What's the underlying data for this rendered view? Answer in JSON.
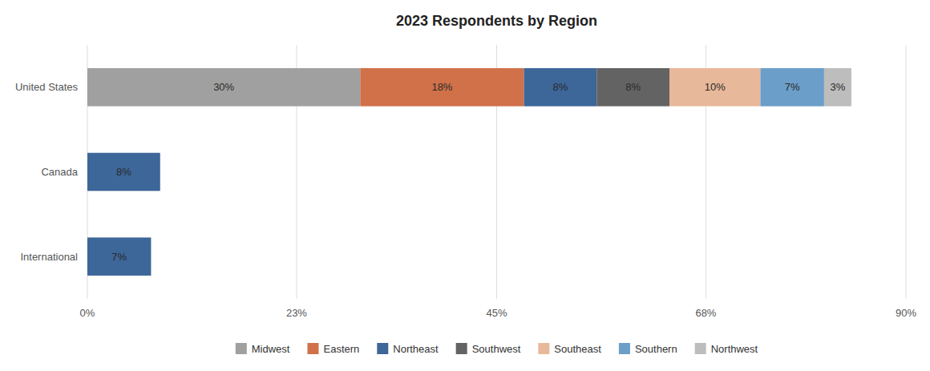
{
  "chart_data": {
    "type": "bar",
    "orientation": "horizontal",
    "stacked": true,
    "title": "2023 Respondents by Region",
    "categories": [
      "United States",
      "Canada",
      "International"
    ],
    "series": [
      {
        "name": "Midwest",
        "color": "#a0a0a0",
        "values": [
          30,
          0,
          0
        ],
        "value_labels": [
          "30%",
          null,
          null
        ]
      },
      {
        "name": "Eastern",
        "color": "#d0714a",
        "values": [
          18,
          0,
          0
        ],
        "value_labels": [
          "18%",
          null,
          null
        ]
      },
      {
        "name": "Northeast",
        "color": "#3d6699",
        "values": [
          8,
          8,
          7
        ],
        "value_labels": [
          "8%",
          "8%",
          "7%"
        ]
      },
      {
        "name": "Southwest",
        "color": "#636363",
        "values": [
          8,
          0,
          0
        ],
        "value_labels": [
          "8%",
          null,
          null
        ]
      },
      {
        "name": "Southeast",
        "color": "#e8b89a",
        "values": [
          10,
          0,
          0
        ],
        "value_labels": [
          "10%",
          null,
          null
        ]
      },
      {
        "name": "Southern",
        "color": "#6b9ec9",
        "values": [
          7,
          0,
          0
        ],
        "value_labels": [
          "7%",
          null,
          null
        ]
      },
      {
        "name": "Northwest",
        "color": "#bdbdbd",
        "values": [
          3,
          0,
          0
        ],
        "value_labels": [
          "3%",
          null,
          null
        ]
      }
    ],
    "xlim": [
      0,
      90
    ],
    "xticks": [
      {
        "value": 0,
        "label": "0%"
      },
      {
        "value": 23,
        "label": "23%"
      },
      {
        "value": 45,
        "label": "45%"
      },
      {
        "value": 68,
        "label": "68%"
      },
      {
        "value": 90,
        "label": "90%"
      }
    ],
    "grid": true,
    "data_labels": true,
    "legend": "bottom"
  }
}
